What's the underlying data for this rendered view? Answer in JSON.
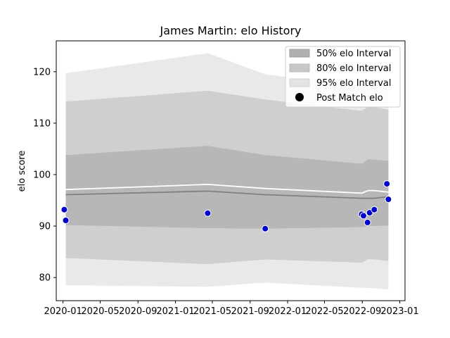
{
  "chart_data": {
    "type": "area",
    "title": "James Martin: elo History",
    "xlabel": "",
    "ylabel": "elo score",
    "xlim": [
      "2019-12-10",
      "2023-01-18"
    ],
    "ylim": [
      75.5,
      126.0
    ],
    "x_ticks": [
      "2020-01",
      "2020-05",
      "2020-09",
      "2021-01",
      "2021-05",
      "2021-09",
      "2022-01",
      "2022-05",
      "2022-09",
      "2023-01"
    ],
    "x_tick_dates": [
      "2020-01-01",
      "2020-05-01",
      "2020-09-01",
      "2021-01-01",
      "2021-05-01",
      "2021-09-01",
      "2022-01-01",
      "2022-05-01",
      "2022-09-01",
      "2023-01-01"
    ],
    "y_ticks": [
      80,
      90,
      100,
      110,
      120
    ],
    "grid": false,
    "legend": {
      "placement": "top-right",
      "entries": [
        "50% elo Interval",
        "80% elo Interval",
        "95% elo Interval",
        "Post Match elo"
      ]
    },
    "colors": {
      "band_50": "#b0b0b0",
      "band_80": "#c8c8c8",
      "band_95": "#e3e3e3",
      "median_line": "#808080",
      "mean_line": "#ffffff",
      "points": "#0000cc",
      "point_edge": "#ffffff"
    },
    "band_x": [
      "2020-01-10",
      "2021-04-16",
      "2021-10-20",
      "2022-08-30",
      "2022-09-20",
      "2022-10-10",
      "2022-11-25"
    ],
    "bands": [
      {
        "name": "95% elo Interval",
        "lower": [
          78.5,
          78.2,
          79.0,
          78.0,
          78.0,
          77.9,
          77.7
        ],
        "upper": [
          119.7,
          123.6,
          119.5,
          117.2,
          118.0,
          117.7,
          117.5
        ]
      },
      {
        "name": "80% elo Interval",
        "lower": [
          83.8,
          82.6,
          83.5,
          82.9,
          83.6,
          83.5,
          83.2
        ],
        "upper": [
          114.2,
          116.3,
          114.6,
          112.4,
          113.2,
          113.1,
          112.6
        ]
      },
      {
        "name": "50% elo Interval",
        "lower": [
          90.2,
          89.6,
          89.5,
          89.8,
          90.0,
          90.0,
          90.1
        ],
        "upper": [
          103.8,
          105.6,
          103.8,
          102.1,
          103.0,
          102.9,
          102.7
        ]
      }
    ],
    "median_line": [
      96.1,
      96.8,
      96.1,
      95.4,
      95.4,
      95.4,
      95.7
    ],
    "mean_line": [
      97.1,
      98.1,
      97.3,
      96.4,
      96.9,
      96.9,
      96.6
    ],
    "points": [
      {
        "x": "2020-01-05",
        "y": 93.2
      },
      {
        "x": "2020-01-10",
        "y": 91.1
      },
      {
        "x": "2021-04-16",
        "y": 92.5
      },
      {
        "x": "2021-10-20",
        "y": 89.5
      },
      {
        "x": "2022-08-30",
        "y": 92.3
      },
      {
        "x": "2022-09-05",
        "y": 92.0
      },
      {
        "x": "2022-09-18",
        "y": 90.7
      },
      {
        "x": "2022-09-25",
        "y": 92.6
      },
      {
        "x": "2022-10-10",
        "y": 93.2
      },
      {
        "x": "2022-11-20",
        "y": 98.2
      },
      {
        "x": "2022-11-25",
        "y": 95.2
      }
    ]
  }
}
